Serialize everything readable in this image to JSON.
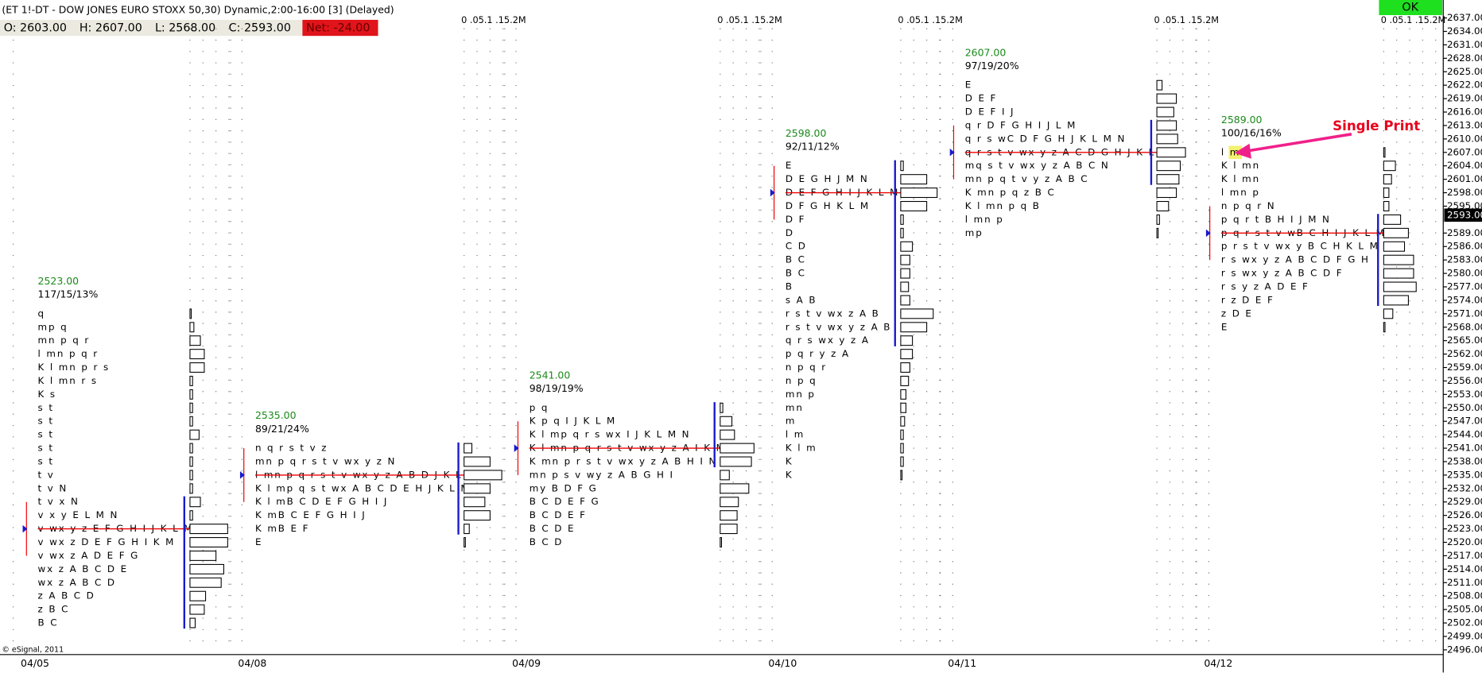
{
  "chart_data": {
    "type": "market-profile",
    "title": "(ET 1!-DT - DOW JONES EURO STOXX 50,30) Dynamic,2:00-16:00 [3] (Delayed)",
    "ohlc": {
      "open": "O: 2603.00",
      "high": "H: 2607.00",
      "low": "L: 2568.00",
      "close": "C: 2593.00",
      "net": "Net: -24.00"
    },
    "button": "OK",
    "copyright": "© eSignal, 2011",
    "annotation": "Single Print",
    "current_price": {
      "value": 2593,
      "label": "2593.00"
    },
    "ylim": [
      2496,
      2637
    ],
    "yticks": [
      {
        "value": 2637,
        "label": "2637.00"
      },
      {
        "value": 2634,
        "label": "2634.00"
      },
      {
        "value": 2631,
        "label": "2631.00"
      },
      {
        "value": 2628,
        "label": "2628.00"
      },
      {
        "value": 2625,
        "label": "2625.00"
      },
      {
        "value": 2622,
        "label": "2622.00"
      },
      {
        "value": 2619,
        "label": "2619.00"
      },
      {
        "value": 2616,
        "label": "2616.00"
      },
      {
        "value": 2613,
        "label": "2613.00"
      },
      {
        "value": 2610,
        "label": "2610.00"
      },
      {
        "value": 2607,
        "label": "2607.00"
      },
      {
        "value": 2604,
        "label": "2604.00"
      },
      {
        "value": 2601,
        "label": "2601.00"
      },
      {
        "value": 2598,
        "label": "2598.00"
      },
      {
        "value": 2595,
        "label": "2595.00"
      },
      {
        "value": 2589,
        "label": "2589.00"
      },
      {
        "value": 2586,
        "label": "2586.00"
      },
      {
        "value": 2583,
        "label": "2583.00"
      },
      {
        "value": 2580,
        "label": "2580.00"
      },
      {
        "value": 2577,
        "label": "2577.00"
      },
      {
        "value": 2574,
        "label": "2574.00"
      },
      {
        "value": 2571,
        "label": "2571.00"
      },
      {
        "value": 2568,
        "label": "2568.00"
      },
      {
        "value": 2565,
        "label": "2565.00"
      },
      {
        "value": 2562,
        "label": "2562.00"
      },
      {
        "value": 2559,
        "label": "2559.00"
      },
      {
        "value": 2556,
        "label": "2556.00"
      },
      {
        "value": 2553,
        "label": "2553.00"
      },
      {
        "value": 2550,
        "label": "2550.00"
      },
      {
        "value": 2547,
        "label": "2547.00"
      },
      {
        "value": 2544,
        "label": "2544.00"
      },
      {
        "value": 2541,
        "label": "2541.00"
      },
      {
        "value": 2538,
        "label": "2538.00"
      },
      {
        "value": 2535,
        "label": "2535.00"
      },
      {
        "value": 2532,
        "label": "2532.00"
      },
      {
        "value": 2529,
        "label": "2529.00"
      },
      {
        "value": 2526,
        "label": "2526.00"
      },
      {
        "value": 2523,
        "label": "2523.00"
      },
      {
        "value": 2520,
        "label": "2520.00"
      },
      {
        "value": 2517,
        "label": "2517.00"
      },
      {
        "value": 2514,
        "label": "2514.00"
      },
      {
        "value": 2511,
        "label": "2511.00"
      },
      {
        "value": 2508,
        "label": "2508.00"
      },
      {
        "value": 2505,
        "label": "2505.00"
      },
      {
        "value": 2502,
        "label": "2502.00"
      },
      {
        "value": 2499,
        "label": "2499.00"
      },
      {
        "value": 2496,
        "label": "2496.00"
      }
    ],
    "volume_lim": [
      0,
      0.2
    ],
    "sessions": [
      {
        "date": "04/05",
        "poc_label": "2523.00",
        "stats": "117/15/13%",
        "top_price": 2571,
        "poc_row": 16,
        "rows": [
          "q",
          "mp q",
          "mn p q r",
          "l mn p q r",
          "K l mn p r s",
          "K l mn r s",
          "K s",
          "s t",
          "s t",
          "s t",
          "s t",
          "s t",
          "t v",
          "t v N",
          "t v x N",
          "v x y E L M N",
          "v wx y z E F G H I J K L M N",
          "v wx z D E F G H I K M",
          "v wx z A D E F G",
          "wx z A B C D E",
          "wx z A B C D",
          "z A B C D",
          "z B C",
          "B C"
        ],
        "volume": [
          0.005,
          0.015,
          0.04,
          0.055,
          0.055,
          0.01,
          0.01,
          0.01,
          0.01,
          0.035,
          0.01,
          0.01,
          0.01,
          0.01,
          0.04,
          0.01,
          0.145,
          0.145,
          0.1,
          0.13,
          0.12,
          0.06,
          0.055,
          0.02
        ]
      },
      {
        "date": "04/08",
        "poc_label": "2535.00",
        "stats": "89/21/24%",
        "top_price": 2541,
        "poc_row": 2,
        "volume_scale": "0 .05.1 .15.2M",
        "rows": [
          "n q r s t v z",
          "mn p q r s t v wx y z N",
          "l mn p q r s t v wx y z A B D J K L M N",
          "K l mp q s t wx A B C D E H J K L M N",
          "K l mB C D E F G H I J",
          "K mB C E F G H I J",
          "K mB E F",
          "E"
        ],
        "volume": [
          0.03,
          0.1,
          0.145,
          0.1,
          0.08,
          0.1,
          0.02,
          0.005
        ]
      },
      {
        "date": "04/09",
        "poc_label": "2541.00",
        "stats": "98/19/19%",
        "top_price": 2550,
        "poc_row": 3,
        "volume_scale": "0 .05.1 .15.2M",
        "rows": [
          "p q",
          "K p q I J K L M",
          "K l mp q r s wx I J K L M N",
          "K l mn p q r s t v wx y z A I K M N",
          "K mn p r s t v wx y z A B H I N",
          "mn p s v wy z A B G H I",
          "my B D F G",
          "B C D E F G",
          "B C D E F",
          "B C D E",
          "B C D"
        ],
        "volume": [
          0.01,
          0.045,
          0.055,
          0.13,
          0.12,
          0.035,
          0.11,
          0.07,
          0.065,
          0.065,
          0.005
        ]
      },
      {
        "date": "04/10",
        "poc_label": "2598.00",
        "stats": "92/11/12%",
        "top_price": 2604,
        "poc_row": 2,
        "volume_scale": "0 .05.1 .15.2M",
        "rows": [
          "E",
          "D E G H J M N",
          "D E F G H I J K L M N",
          "D F G H K L M",
          "D F",
          "D",
          "C D",
          "B C",
          "B C",
          "B",
          "s A B",
          "r s t v wx z A B",
          "r s t v wx y z A B",
          "q r s wx y z A",
          "p q r y z A",
          "n p q r",
          "n p q",
          "mn p",
          "mn",
          "m",
          "l m",
          "K l m",
          "K",
          "K"
        ],
        "volume": [
          0.01,
          0.1,
          0.14,
          0.1,
          0.01,
          0.01,
          0.045,
          0.035,
          0.035,
          0.03,
          0.035,
          0.125,
          0.1,
          0.045,
          0.045,
          0.035,
          0.03,
          0.02,
          0.02,
          0.015,
          0.01,
          0.01,
          0.01,
          0.005
        ]
      },
      {
        "date": "04/11",
        "poc_label": "2607.00",
        "stats": "97/19/20%",
        "top_price": 2622,
        "poc_row": 5,
        "volume_scale": "0 .05.1 .15.2M",
        "rows": [
          "E",
          "D E F",
          "D E F I J",
          "q r D F G H I J L M",
          "q r s wC D F G H J K L M N",
          "q r s t v wx y z A C D G H J K L M N",
          "mq s t v wx y z A B C N",
          "mn p q t v y z A B C",
          "K mn p q z B C",
          "K l mn p q B",
          "l mn p",
          "mp"
        ],
        "volume": [
          0.02,
          0.075,
          0.065,
          0.075,
          0.08,
          0.11,
          0.09,
          0.085,
          0.075,
          0.045,
          0.01,
          0.005
        ]
      },
      {
        "date": "04/12",
        "poc_label": "2589.00",
        "stats": "100/16/16%",
        "top_price": 2607,
        "poc_row": 6,
        "volume_scale": "0 .05.1 .15.2M",
        "rows": [
          "l m",
          "K l mn",
          "K l mn",
          "l mn p",
          "n p q r N",
          "p q r t B H I J M N",
          "p q r s t v wB C H I J K L M N",
          "p r s t v wx y B C H K L M",
          "r s wx y z A B C D F G H",
          "r s wx y z A B C D F",
          "r s y z A D E F",
          "r z D E F",
          "z D E",
          "E"
        ],
        "volume": [
          0.005,
          0.045,
          0.03,
          0.02,
          0.02,
          0.065,
          0.095,
          0.08,
          0.115,
          0.115,
          0.125,
          0.095,
          0.035,
          0.005
        ]
      }
    ]
  }
}
